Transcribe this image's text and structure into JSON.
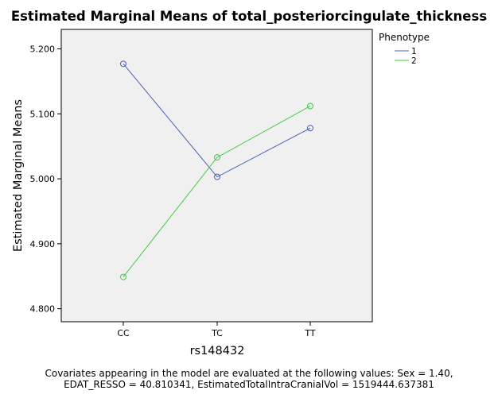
{
  "chart_data": {
    "type": "line",
    "title": "Estimated Marginal Means of total_posteriorcingulate_thickness",
    "xlabel": "rs148432",
    "ylabel": "Estimated Marginal Means",
    "categories": [
      "CC",
      "TC",
      "TT"
    ],
    "ylim": [
      4.78,
      5.23
    ],
    "yticks": [
      "4.800",
      "4.900",
      "5.000",
      "5.100",
      "5.200"
    ],
    "ytick_values": [
      4.8,
      4.9,
      5.0,
      5.1,
      5.2
    ],
    "legend_title": "Phenotype",
    "legend_position": "right",
    "grid": false,
    "series": [
      {
        "name": "1",
        "values": [
          5.177,
          5.003,
          5.078
        ],
        "color": "#4a5fb5"
      },
      {
        "name": "2",
        "values": [
          4.849,
          5.033,
          5.112
        ],
        "color": "#3fcb3f"
      }
    ]
  },
  "footnote": {
    "line1": "Covariates appearing in the model are evaluated at the following values: Sex = 1.40,",
    "line2": "EDAT_RESSO = 40.810341, EstimatedTotalIntraCranialVol = 1519444.637381"
  }
}
